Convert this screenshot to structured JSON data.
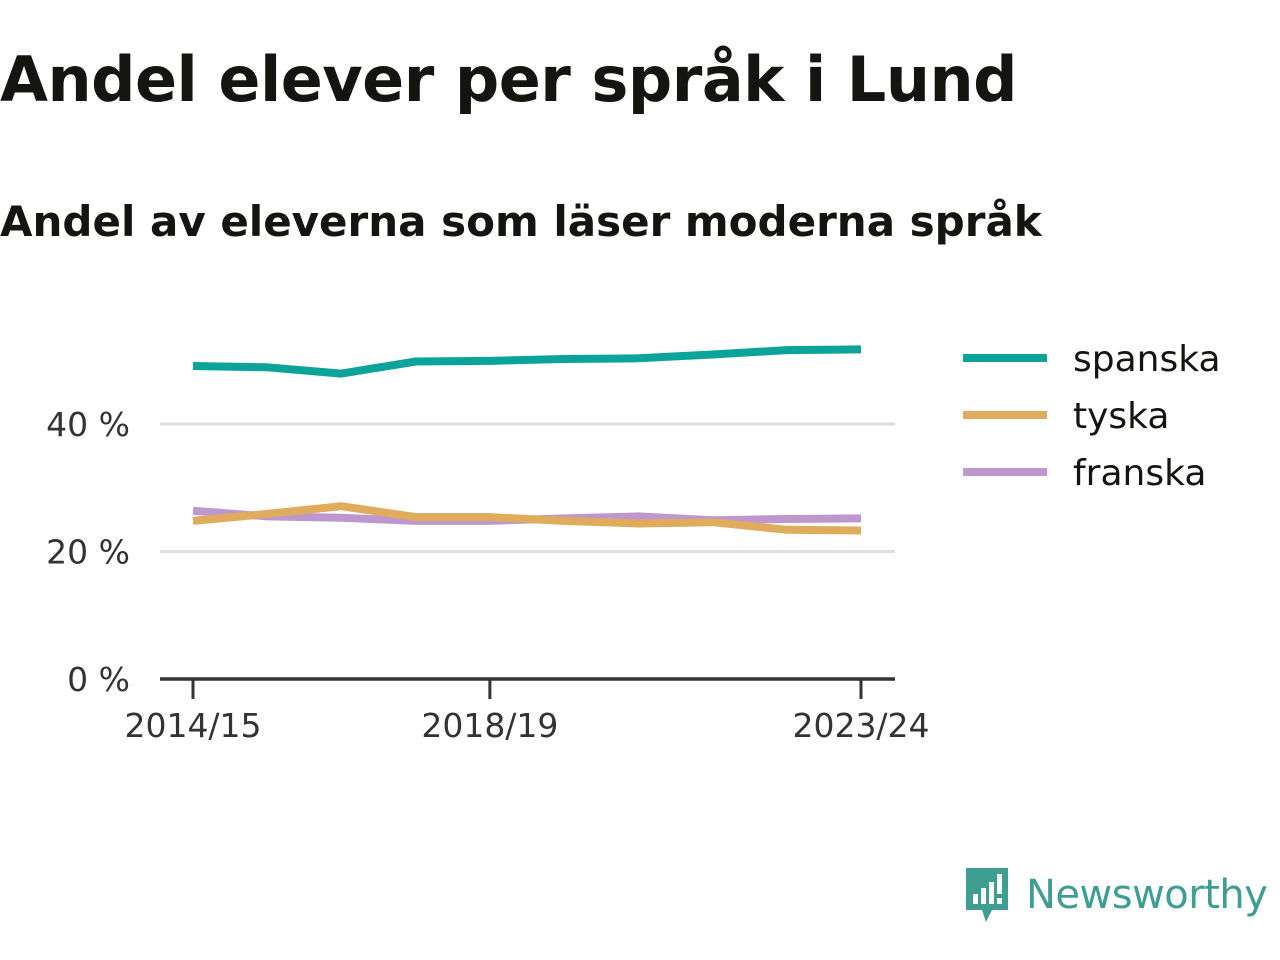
{
  "header": {
    "title": "Andel elever per språk i Lund",
    "subtitle": "Andel av eleverna som läser moderna språk"
  },
  "brand": {
    "name": "Newsworthy",
    "icon": "newsworthy-logo-icon",
    "color": "#3e9e92"
  },
  "chart_data": {
    "type": "line",
    "title": "Andel elever per språk i Lund",
    "subtitle": "Andel av eleverna som läser moderna språk",
    "x": [
      "2014/15",
      "2015/16",
      "2016/17",
      "2017/18",
      "2018/19",
      "2019/20",
      "2020/21",
      "2021/22",
      "2022/23",
      "2023/24"
    ],
    "x_tick_labels": [
      "2014/15",
      "2018/19",
      "2023/24"
    ],
    "y_ticks": [
      0,
      20,
      40
    ],
    "y_tick_labels": [
      "0 %",
      "20 %",
      "40 %"
    ],
    "ylim": [
      0,
      52
    ],
    "grid": true,
    "legend_position": "right",
    "series": [
      {
        "name": "spanska",
        "color": "#0ca399",
        "values": [
          49.1,
          48.9,
          47.9,
          49.8,
          49.9,
          50.2,
          50.3,
          50.9,
          51.6,
          51.7
        ]
      },
      {
        "name": "tyska",
        "color": "#deac5c",
        "values": [
          24.8,
          25.9,
          27.1,
          25.4,
          25.4,
          24.8,
          24.4,
          24.6,
          23.4,
          23.3
        ]
      },
      {
        "name": "franska",
        "color": "#bf97cf",
        "values": [
          26.4,
          25.5,
          25.3,
          24.8,
          24.8,
          25.2,
          25.5,
          24.9,
          25.1,
          25.2
        ]
      }
    ]
  }
}
